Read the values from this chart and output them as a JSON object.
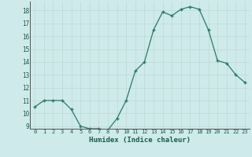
{
  "x": [
    0,
    1,
    2,
    3,
    4,
    5,
    6,
    7,
    8,
    9,
    10,
    11,
    12,
    13,
    14,
    15,
    16,
    17,
    18,
    19,
    20,
    21,
    22,
    23
  ],
  "y": [
    10.5,
    11.0,
    11.0,
    11.0,
    10.3,
    9.0,
    8.8,
    8.8,
    8.7,
    9.6,
    11.0,
    13.3,
    14.0,
    16.5,
    17.9,
    17.6,
    18.1,
    18.3,
    18.1,
    16.5,
    14.1,
    13.9,
    13.0,
    12.4
  ],
  "xlabel": "Humidex (Indice chaleur)",
  "ylim": [
    8.8,
    18.7
  ],
  "xlim": [
    -0.5,
    23.5
  ],
  "yticks": [
    9,
    10,
    11,
    12,
    13,
    14,
    15,
    16,
    17,
    18
  ],
  "xticks": [
    0,
    1,
    2,
    3,
    4,
    5,
    6,
    7,
    8,
    9,
    10,
    11,
    12,
    13,
    14,
    15,
    16,
    17,
    18,
    19,
    20,
    21,
    22,
    23
  ],
  "line_color": "#2a7a68",
  "marker_color": "#2a7a68",
  "bg_color": "#ceeaea",
  "grid_color_major": "#c0d8d8",
  "grid_color_minor": "#d4e8e8",
  "label_color": "#1a5a50",
  "tick_color": "#1a5a50",
  "font_family": "monospace"
}
